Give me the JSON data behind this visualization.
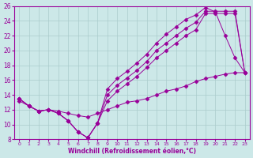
{
  "background_color": "#cce8e8",
  "grid_color": "#aacccc",
  "line_color": "#990099",
  "xlim": [
    -0.5,
    23.5
  ],
  "ylim": [
    8,
    26
  ],
  "yticks": [
    8,
    10,
    12,
    14,
    16,
    18,
    20,
    22,
    24,
    26
  ],
  "xticks": [
    0,
    1,
    2,
    3,
    4,
    5,
    6,
    7,
    8,
    9,
    10,
    11,
    12,
    13,
    14,
    15,
    16,
    17,
    18,
    19,
    20,
    21,
    22,
    23
  ],
  "xlabel": "Windchill (Refroidissement éolien,°C)",
  "series": [
    {
      "x": [
        0,
        1,
        2,
        3,
        4,
        5,
        6,
        7,
        8,
        9,
        10,
        11,
        12,
        13,
        14,
        15,
        16,
        17,
        18,
        19,
        20,
        21,
        22,
        23
      ],
      "y": [
        13.5,
        12.5,
        11.8,
        12.0,
        11.5,
        10.5,
        9.0,
        8.2,
        10.2,
        14.8,
        16.2,
        17.2,
        18.3,
        19.5,
        21.0,
        22.2,
        23.2,
        24.2,
        24.8,
        25.8,
        25.2,
        22.0,
        19.0,
        17.0
      ],
      "marker": "D",
      "markersize": 2.5
    },
    {
      "x": [
        0,
        1,
        2,
        3,
        4,
        5,
        6,
        7,
        8,
        9,
        10,
        11,
        12,
        13,
        14,
        15,
        16,
        17,
        18,
        19,
        20,
        21,
        22,
        23
      ],
      "y": [
        13.5,
        12.5,
        11.8,
        12.0,
        11.5,
        10.5,
        9.0,
        8.2,
        10.2,
        14.0,
        15.3,
        16.3,
        17.3,
        18.5,
        20.0,
        21.0,
        22.0,
        23.0,
        23.8,
        25.3,
        25.3,
        25.3,
        25.3,
        17.0
      ],
      "marker": "D",
      "markersize": 2.5
    },
    {
      "x": [
        0,
        1,
        2,
        3,
        4,
        5,
        6,
        7,
        8,
        9,
        10,
        11,
        12,
        13,
        14,
        15,
        16,
        17,
        18,
        19,
        20,
        21,
        22,
        23
      ],
      "y": [
        13.5,
        12.5,
        11.8,
        12.0,
        11.5,
        10.5,
        9.0,
        8.2,
        10.2,
        13.2,
        14.5,
        15.5,
        16.5,
        17.7,
        19.0,
        20.0,
        21.0,
        22.0,
        22.8,
        25.0,
        25.0,
        25.0,
        25.0,
        17.0
      ],
      "marker": "D",
      "markersize": 2.5
    },
    {
      "x": [
        0,
        1,
        2,
        3,
        4,
        5,
        6,
        7,
        8,
        9,
        10,
        11,
        12,
        13,
        14,
        15,
        16,
        17,
        18,
        19,
        20,
        21,
        22,
        23
      ],
      "y": [
        13.2,
        12.5,
        11.8,
        12.0,
        11.8,
        11.5,
        11.2,
        11.0,
        11.5,
        12.0,
        12.5,
        13.0,
        13.2,
        13.5,
        14.0,
        14.5,
        14.8,
        15.2,
        15.8,
        16.2,
        16.5,
        16.8,
        17.0,
        17.0
      ],
      "marker": "D",
      "markersize": 2.5
    }
  ]
}
